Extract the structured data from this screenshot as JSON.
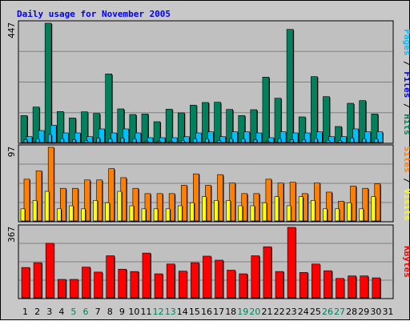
{
  "chart_data": {
    "type": "bar",
    "title": "Daily usage for November 2005",
    "categories": [
      "1",
      "2",
      "3",
      "4",
      "5",
      "6",
      "7",
      "8",
      "9",
      "10",
      "11",
      "12",
      "13",
      "14",
      "15",
      "16",
      "17",
      "18",
      "19",
      "20",
      "21",
      "22",
      "23",
      "24",
      "25",
      "26",
      "27",
      "28",
      "29",
      "30",
      "31"
    ],
    "weekend_days": [
      "5",
      "6",
      "12",
      "13",
      "19",
      "20",
      "26",
      "27"
    ],
    "colors": {
      "title": "#0000ee",
      "hits": "#00805c",
      "files": "#00c0ff",
      "pages": "#00c0ff",
      "sites": "#ff8000",
      "visits": "#ffff00",
      "kbytes": "#ff0000",
      "weekend_day": "#00805c",
      "weekday_day": "#000000",
      "plot_bg": "#c0c0c0"
    },
    "panels": [
      {
        "name": "hits_files_pages",
        "max_label": "447",
        "ylim": [
          0,
          447
        ],
        "side_labels": [
          {
            "text": "Pages",
            "color": "#00c0ff"
          },
          {
            "text": " / ",
            "color": "#000000"
          },
          {
            "text": "Files",
            "color": "#0000ff"
          },
          {
            "text": " / ",
            "color": "#000000"
          },
          {
            "text": "Hits",
            "color": "#00805c"
          }
        ],
        "series": [
          {
            "name": "Hits",
            "color": "#00805c",
            "values": [
              101,
              133,
              447,
              116,
              92,
              115,
              109,
              257,
              126,
              105,
              107,
              78,
              125,
              111,
              140,
              150,
              151,
              124,
              101,
              123,
              245,
              166,
              424,
              96,
              247,
              172,
              60,
              147,
              157,
              107,
              0
            ]
          },
          {
            "name": "Files",
            "color": "#00c0ff",
            "values": [
              22,
              45,
              65,
              36,
              36,
              22,
              51,
              36,
              51,
              36,
              18,
              18,
              18,
              22,
              36,
              40,
              22,
              40,
              40,
              36,
              18,
              40,
              36,
              36,
              40,
              22,
              22,
              51,
              40,
              40,
              0
            ]
          },
          {
            "name": "Pages",
            "color": "#00c0ff",
            "values": [
              11,
              14,
              30,
              14,
              11,
              7,
              17,
              14,
              17,
              14,
              4,
              4,
              4,
              7,
              14,
              14,
              7,
              14,
              14,
              11,
              4,
              14,
              11,
              11,
              14,
              7,
              7,
              17,
              14,
              14,
              0
            ]
          }
        ]
      },
      {
        "name": "sites_visits",
        "max_label": "97",
        "ylim": [
          0,
          97
        ],
        "side_labels": [
          {
            "text": "Sites",
            "color": "#ff8000"
          },
          {
            "text": " / ",
            "color": "#000000"
          },
          {
            "text": "Visits",
            "color": "#ffff00"
          }
        ],
        "series": [
          {
            "name": "Visits",
            "color": "#ff8000",
            "values": [
              55,
              66,
              97,
              43,
              43,
              54,
              54,
              69,
              57,
              43,
              36,
              36,
              36,
              47,
              62,
              47,
              61,
              50,
              36,
              36,
              55,
              50,
              51,
              36,
              50,
              38,
              26,
              46,
              43,
              49,
              0
            ]
          },
          {
            "name": "Sites",
            "color": "#ffff00",
            "values": [
              16,
              27,
              39,
              16,
              20,
              16,
              27,
              24,
              39,
              20,
              16,
              16,
              16,
              20,
              24,
              32,
              27,
              27,
              20,
              20,
              24,
              32,
              20,
              32,
              27,
              16,
              16,
              24,
              16,
              32,
              0
            ]
          }
        ]
      },
      {
        "name": "kbytes",
        "max_label": "367",
        "ylim": [
          0,
          367
        ],
        "side_labels": [
          {
            "text": "KBytes",
            "color": "#ff0000"
          }
        ],
        "series": [
          {
            "name": "KBytes",
            "color": "#ff0000",
            "values": [
              158,
              183,
              284,
              96,
              96,
              160,
              134,
              219,
              149,
              137,
              233,
              125,
              176,
              139,
              183,
              217,
              196,
              144,
              125,
              219,
              266,
              137,
              367,
              132,
              176,
              141,
              101,
              114,
              114,
              104,
              0
            ]
          }
        ]
      }
    ]
  }
}
